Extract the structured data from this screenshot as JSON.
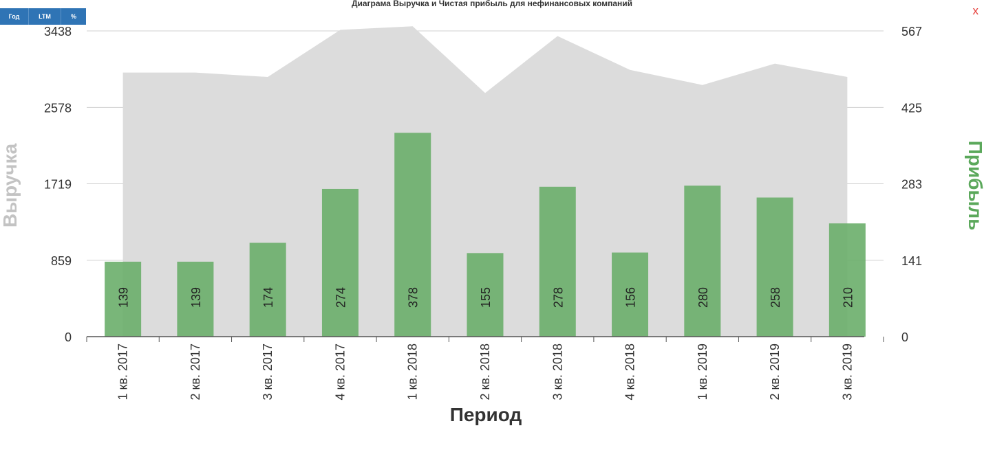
{
  "toggles": [
    {
      "label": "Год"
    },
    {
      "label": "LTM"
    },
    {
      "label": "%"
    }
  ],
  "close_label": "x",
  "colors": {
    "revenue_area": "#dcdcdc",
    "profit_bar": "#6aae6a",
    "profit_label": "#5ba85b",
    "revenue_label": "#c3c3c3",
    "toggle_bg": "#2f74b5",
    "close": "#e53935"
  },
  "chart_data": {
    "type": "bar",
    "title": "Диаграма Выручка и Чистая прибыль для нефинансовых компаний",
    "xlabel": "Период",
    "ylabel_left": "Выручка",
    "ylabel_right": "Прибыль",
    "categories": [
      "1 кв. 2017",
      "2 кв. 2017",
      "3 кв. 2017",
      "4 кв. 2017",
      "1 кв. 2018",
      "2 кв. 2018",
      "3 кв. 2018",
      "4 кв. 2018",
      "1 кв. 2019",
      "2 кв. 2019",
      "3 кв. 2019"
    ],
    "y_left_ticks": [
      "0",
      "859",
      "1719",
      "2578",
      "3438"
    ],
    "y_right_ticks": [
      "0",
      "141",
      "283",
      "425",
      "567"
    ],
    "ylim_left": [
      0,
      3438
    ],
    "ylim_right": [
      0,
      567
    ],
    "grid": true,
    "series": [
      {
        "name": "Выручка",
        "type": "area",
        "axis": "left",
        "values": [
          2970,
          2970,
          2920,
          3450,
          3490,
          2740,
          3380,
          3000,
          2830,
          3070,
          2920
        ]
      },
      {
        "name": "Прибыль",
        "type": "bar",
        "axis": "right",
        "values": [
          139,
          139,
          174,
          274,
          378,
          155,
          278,
          156,
          280,
          258,
          210
        ]
      }
    ]
  }
}
